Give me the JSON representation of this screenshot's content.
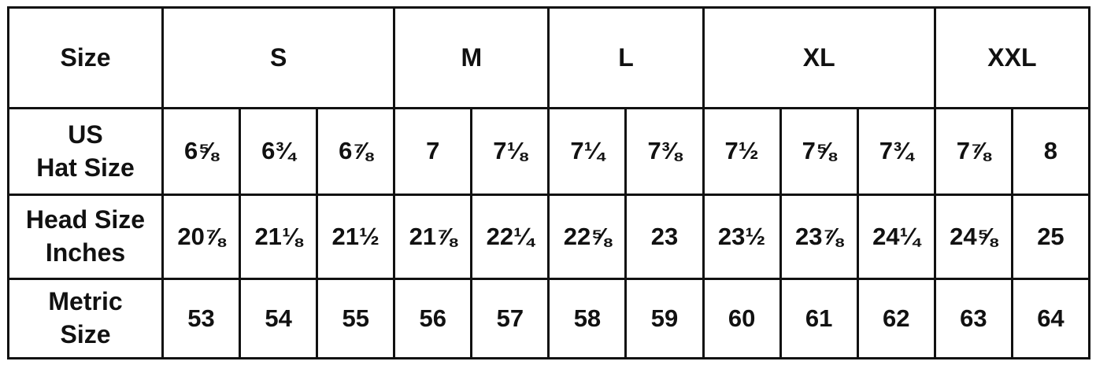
{
  "header": {
    "label": "Size",
    "groups": [
      "S",
      "M",
      "L",
      "XL",
      "XXL"
    ]
  },
  "rows": [
    {
      "label": [
        "US",
        "Hat Size"
      ],
      "cells": [
        "6⅝",
        "6¾",
        "6⅞",
        "7",
        "7⅛",
        "7¼",
        "7⅜",
        "7½",
        "7⅝",
        "7¾",
        "7⅞",
        "8"
      ]
    },
    {
      "label": [
        "Head Size",
        "Inches"
      ],
      "cells": [
        "20⅞",
        "21⅛",
        "21½",
        "21⅞",
        "22¼",
        "22⅝",
        "23",
        "23½",
        "23⅞",
        "24¼",
        "24⅝",
        "25"
      ]
    },
    {
      "label": [
        "Metric",
        "Size"
      ],
      "cells": [
        53,
        54,
        55,
        56,
        57,
        58,
        59,
        60,
        61,
        62,
        63,
        64
      ]
    }
  ]
}
